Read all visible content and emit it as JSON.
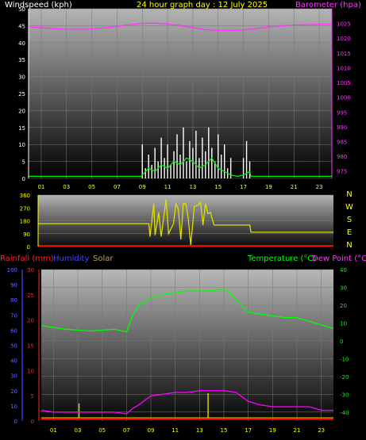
{
  "chart_data": [
    {
      "type": "line",
      "header": {
        "left": "Windspeed (kph)",
        "center": "24 hour graph day : 12 July 2025",
        "right": "Barometer (hpa)"
      },
      "x_ticks": [
        "01",
        "03",
        "05",
        "07",
        "09",
        "11",
        "13",
        "15",
        "17",
        "19",
        "21",
        "23"
      ],
      "x_range": [
        0,
        24
      ],
      "y_left": {
        "range": [
          0,
          50
        ],
        "ticks": [
          "0",
          "5",
          "10",
          "15",
          "20",
          "25",
          "30",
          "35",
          "40",
          "45",
          "50"
        ]
      },
      "y_right": {
        "range": [
          972.5,
          1030
        ],
        "ticks": [
          "975",
          "980",
          "985",
          "990",
          "995",
          "1000",
          "1005",
          "1010",
          "1015",
          "1020",
          "1025"
        ]
      },
      "series": [
        {
          "color": "#ff33ff",
          "axis": "right",
          "x": [
            0,
            1,
            2,
            3,
            4,
            5,
            6,
            7,
            8,
            9,
            10,
            11,
            12,
            13,
            14,
            15,
            16,
            17,
            18,
            19,
            20,
            21,
            22,
            23,
            24
          ],
          "values": [
            1023.8,
            1023.6,
            1023.2,
            1023,
            1023,
            1023.1,
            1023.5,
            1024,
            1024.6,
            1025,
            1025.1,
            1024.8,
            1024.3,
            1023.6,
            1022.9,
            1022.6,
            1022.6,
            1022.8,
            1023.3,
            1023.8,
            1024.2,
            1024.5,
            1024.6,
            1024.7,
            1024.8
          ]
        },
        {
          "color": "#ffffff",
          "axis": "left",
          "style": "gust",
          "x": [
            9,
            9.25,
            9.5,
            9.75,
            10,
            10.25,
            10.5,
            10.75,
            11,
            11.25,
            11.5,
            11.75,
            12,
            12.25,
            12.5,
            12.75,
            13,
            13.25,
            13.5,
            13.75,
            14,
            14.25,
            14.5,
            14.75,
            15,
            15.25,
            15.5,
            15.75,
            16,
            17,
            17.25,
            17.5
          ],
          "values": [
            10,
            3,
            7,
            4,
            9,
            5,
            12,
            6,
            10,
            4,
            8,
            13,
            7,
            15,
            5,
            11,
            9,
            14,
            6,
            12,
            8,
            15,
            9,
            5,
            13,
            7,
            10,
            3,
            6,
            6,
            11,
            5
          ]
        },
        {
          "color": "#00ee00",
          "axis": "left",
          "style": "average",
          "x": [
            0,
            8.9,
            9,
            9.5,
            10,
            10.5,
            11,
            11.5,
            12,
            12.5,
            13,
            13.5,
            14,
            14.5,
            15,
            15.5,
            16,
            16.5,
            17,
            17.5,
            17.6,
            24
          ],
          "values": [
            0.6,
            0.6,
            1,
            3,
            2,
            4,
            3,
            5,
            4,
            6,
            5,
            3,
            4,
            6,
            3,
            2,
            1,
            0.6,
            1,
            2,
            0.6,
            0.6
          ]
        }
      ]
    },
    {
      "type": "line",
      "y_range": [
        0,
        360
      ],
      "y_ticks": [
        "0",
        "90",
        "180",
        "270",
        "360"
      ],
      "direction_labels": [
        "N",
        "W",
        "S",
        "E",
        "N"
      ],
      "series": [
        {
          "color": "#dddd00",
          "x": [
            0,
            9,
            9.1,
            9.4,
            9.5,
            9.8,
            10,
            10.4,
            10.6,
            11,
            11.2,
            11.4,
            11.6,
            11.8,
            12,
            12.2,
            12.4,
            12.7,
            13,
            13.2,
            13.4,
            13.6,
            13.8,
            14,
            14.3,
            14.6,
            15,
            17.2,
            17.3,
            24
          ],
          "values": [
            160,
            160,
            70,
            300,
            80,
            240,
            70,
            330,
            90,
            160,
            300,
            260,
            50,
            300,
            300,
            200,
            10,
            280,
            290,
            310,
            150,
            300,
            230,
            240,
            150,
            150,
            150,
            150,
            100,
            100
          ]
        },
        {
          "color": "#ff0000",
          "style": "low-bar",
          "x": [
            0,
            24
          ],
          "values": [
            0,
            0
          ]
        }
      ]
    },
    {
      "type": "line",
      "header": {
        "rain": "Rainfall (mm)",
        "humidity": "Humidity",
        "solar": "Solar",
        "temperature": "Temperature (°C)",
        "dewpoint": "Dew Point (°C)"
      },
      "x_ticks": [
        "01",
        "03",
        "05",
        "07",
        "09",
        "11",
        "13",
        "15",
        "17",
        "19",
        "21",
        "23"
      ],
      "x_range": [
        0,
        24
      ],
      "y_rain": {
        "range": [
          0,
          30
        ],
        "ticks": [
          "0",
          "5",
          "10",
          "15",
          "20",
          "25",
          "30"
        ]
      },
      "y_humidity": {
        "range": [
          0,
          100
        ],
        "ticks": [
          "0",
          "10",
          "20",
          "30",
          "40",
          "50",
          "60",
          "70",
          "80",
          "90",
          "100"
        ]
      },
      "y_temp": {
        "range": [
          -45,
          40
        ],
        "ticks": [
          "-40",
          "-30",
          "-20",
          "-10",
          "0",
          "10",
          "20",
          "30",
          "40"
        ]
      },
      "series": [
        {
          "color": "#00ff00",
          "axis": "temp",
          "name_ref": "temperature",
          "x": [
            0,
            1,
            2,
            3,
            4,
            5,
            6,
            7,
            7.5,
            8,
            9,
            10,
            11,
            12,
            13,
            14,
            15,
            15.5,
            16,
            17,
            18,
            19,
            20,
            21,
            22,
            23,
            24
          ],
          "values": [
            8.5,
            7.5,
            6.5,
            6,
            5.5,
            6,
            6.5,
            5,
            14,
            20,
            24,
            26,
            27,
            28,
            28,
            28,
            29,
            27,
            23,
            16,
            15,
            14,
            13,
            13,
            11,
            9,
            7
          ]
        },
        {
          "color": "#ff00ff",
          "axis": "temp",
          "name_ref": "dewpoint",
          "x": [
            0,
            1,
            2,
            3,
            4,
            5,
            6,
            7,
            7.5,
            8,
            9,
            10,
            11,
            12,
            13,
            14,
            15,
            16,
            17,
            18,
            19,
            20,
            21,
            22,
            23,
            24
          ],
          "values": [
            -39,
            -40,
            -40,
            -40,
            -40,
            -40,
            -40,
            -41,
            -38,
            -36,
            -31,
            -30,
            -29,
            -29,
            -28,
            -28,
            -28,
            -29,
            -34,
            -36,
            -37,
            -37,
            -37,
            -37,
            -39,
            -39
          ]
        },
        {
          "color": "#dddd00",
          "axis": "rain",
          "name_ref": "solar",
          "style": "spikes",
          "x": [
            3.1,
            13.7
          ],
          "values": [
            3.5,
            5.5
          ]
        },
        {
          "color": "#ff0000",
          "axis": "rain",
          "name_ref": "rain",
          "style": "baseline",
          "x": [
            0,
            24
          ],
          "values": [
            0.2,
            0.2
          ]
        }
      ]
    }
  ]
}
